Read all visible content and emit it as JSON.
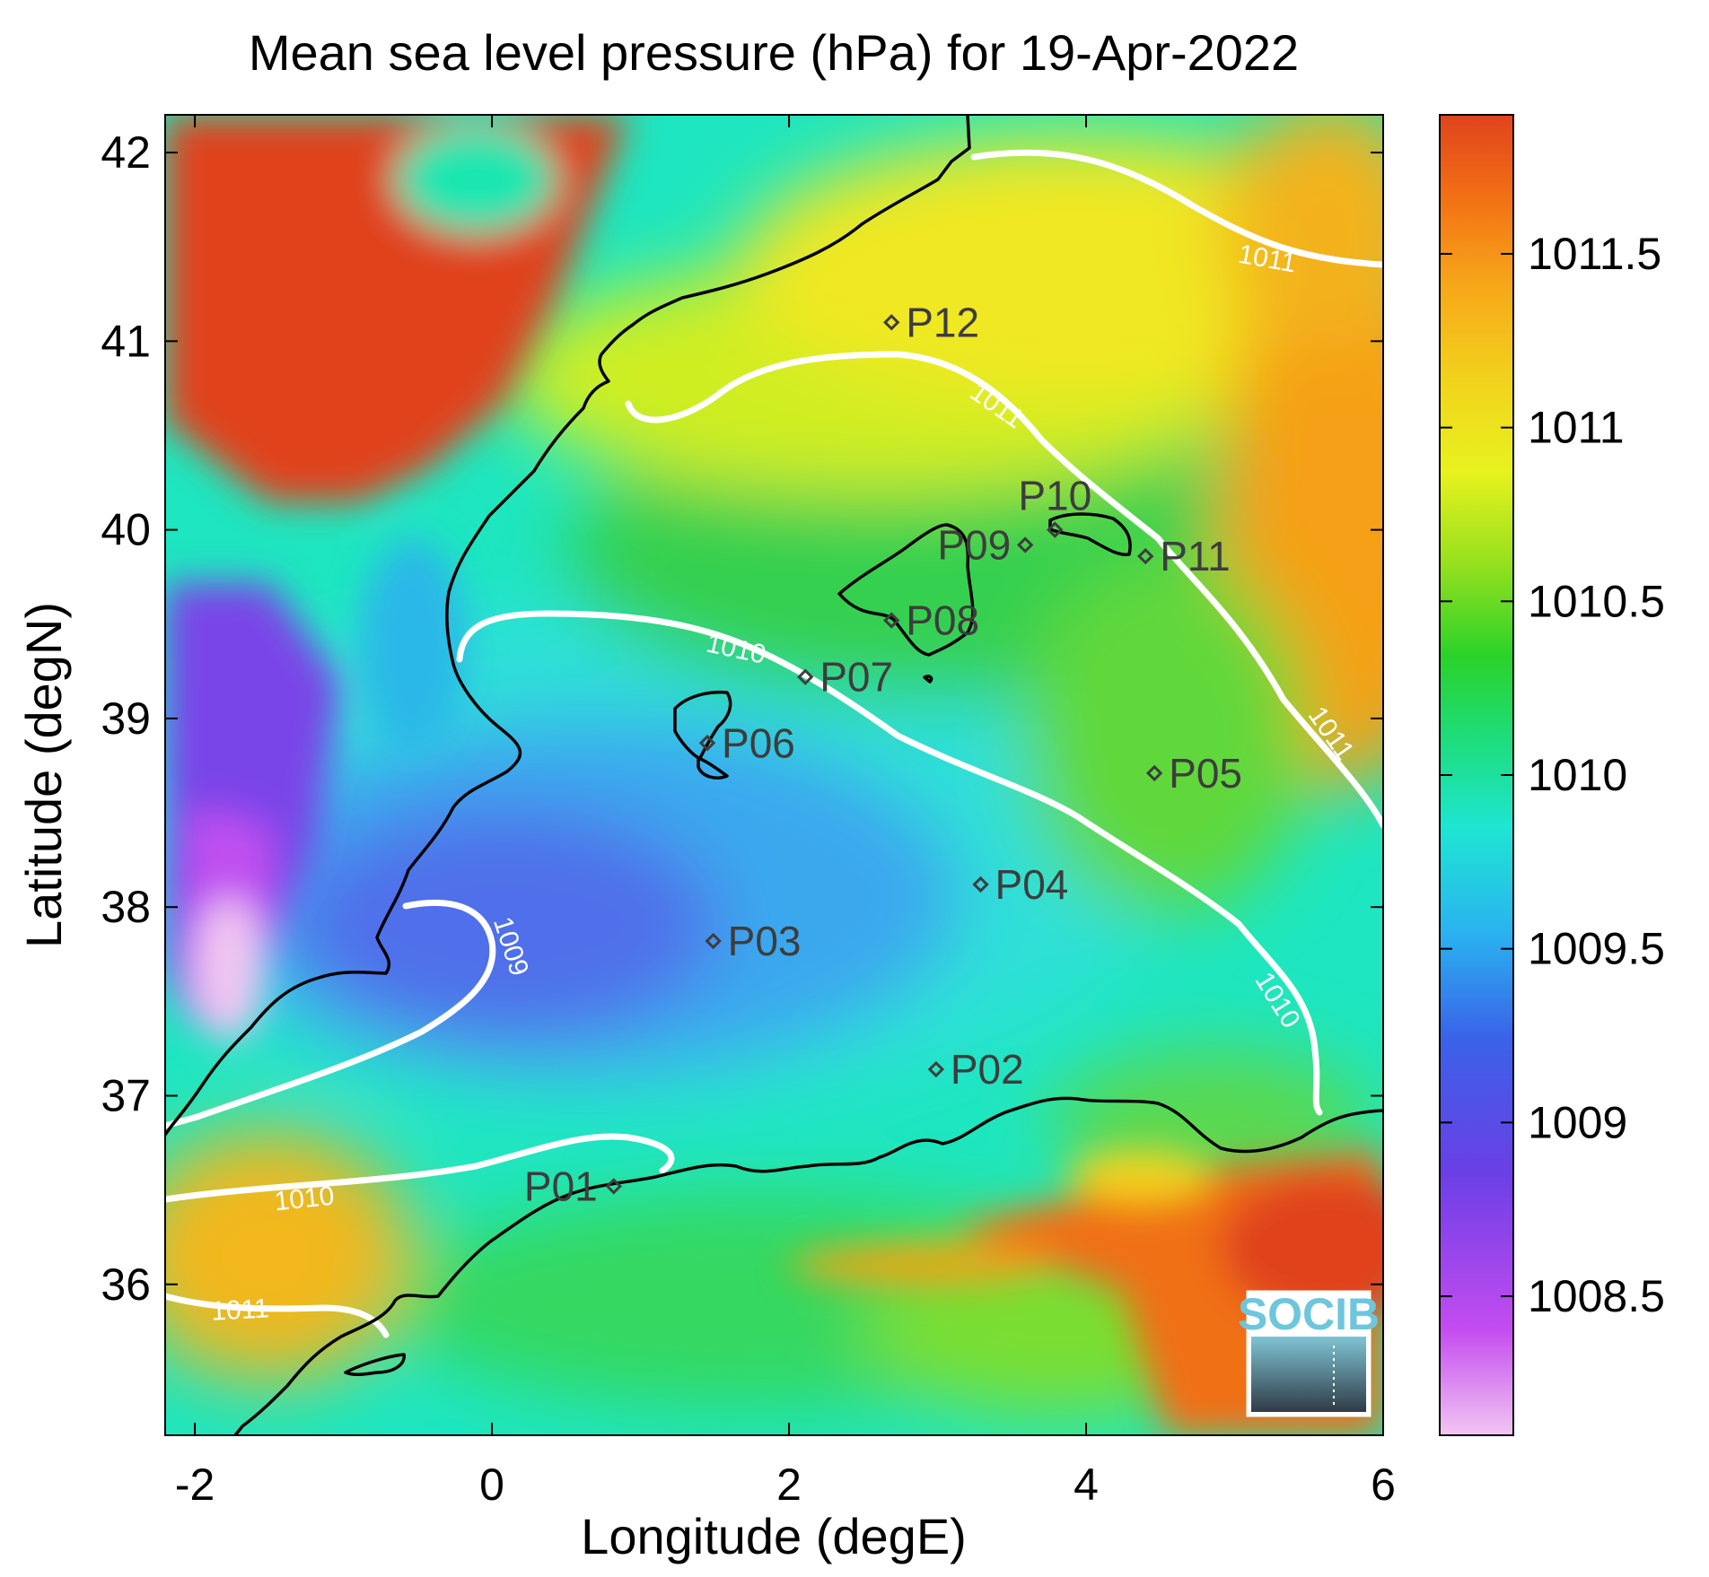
{
  "chart_data": {
    "type": "heatmap",
    "title": "Mean sea level pressure (hPa) for 19-Apr-2022",
    "xlabel": "Longitude (degE)",
    "ylabel": "Latitude (degN)",
    "xlim": [
      -2.2,
      6
    ],
    "ylim": [
      35.2,
      42.2
    ],
    "x_ticks": [
      -2,
      0,
      2,
      4,
      6
    ],
    "x_tick_labels": [
      "-2",
      "0",
      "2",
      "4",
      "6"
    ],
    "y_ticks": [
      36,
      37,
      38,
      39,
      40,
      41,
      42
    ],
    "y_tick_labels": [
      "36",
      "37",
      "38",
      "39",
      "40",
      "41",
      "42"
    ],
    "colorbar": {
      "range": [
        1008.1,
        1011.9
      ],
      "ticks": [
        1008.5,
        1009,
        1009.5,
        1010,
        1010.5,
        1011,
        1011.5
      ],
      "tick_labels": [
        "1008.5",
        "1009",
        "1009.5",
        "1010",
        "1010.5",
        "1011",
        "1011.5"
      ],
      "colormap": [
        "#f2c6f2",
        "#c44cf0",
        "#6a3fe6",
        "#3a62e8",
        "#2ab2f0",
        "#1ee6d2",
        "#1edc78",
        "#2ad22a",
        "#96e01e",
        "#e8f21e",
        "#f2d21c",
        "#f7a81a",
        "#f26e14",
        "#e0431e"
      ]
    },
    "contours": [
      {
        "level": 1009,
        "label": "1009"
      },
      {
        "level": 1010,
        "label": "1010"
      },
      {
        "level": 1011,
        "label": "1011"
      }
    ],
    "stations": [
      {
        "name": "P01",
        "lon": 0.82,
        "lat": 36.52
      },
      {
        "name": "P02",
        "lon": 2.99,
        "lat": 37.14
      },
      {
        "name": "P03",
        "lon": 1.49,
        "lat": 37.82
      },
      {
        "name": "P04",
        "lon": 3.29,
        "lat": 38.12
      },
      {
        "name": "P05",
        "lon": 4.46,
        "lat": 38.71
      },
      {
        "name": "P06",
        "lon": 1.45,
        "lat": 38.87
      },
      {
        "name": "P07",
        "lon": 2.11,
        "lat": 39.22
      },
      {
        "name": "P08",
        "lon": 2.69,
        "lat": 39.52
      },
      {
        "name": "P09",
        "lon": 3.59,
        "lat": 39.92
      },
      {
        "name": "P10",
        "lon": 3.79,
        "lat": 40.0
      },
      {
        "name": "P11",
        "lon": 4.4,
        "lat": 39.86
      },
      {
        "name": "P12",
        "lon": 2.69,
        "lat": 41.1
      }
    ]
  },
  "logo": {
    "text": "SOCIB"
  },
  "colors": {
    "coast": "#000000",
    "contour": "#ffffff",
    "station": "#3d3d3d"
  }
}
